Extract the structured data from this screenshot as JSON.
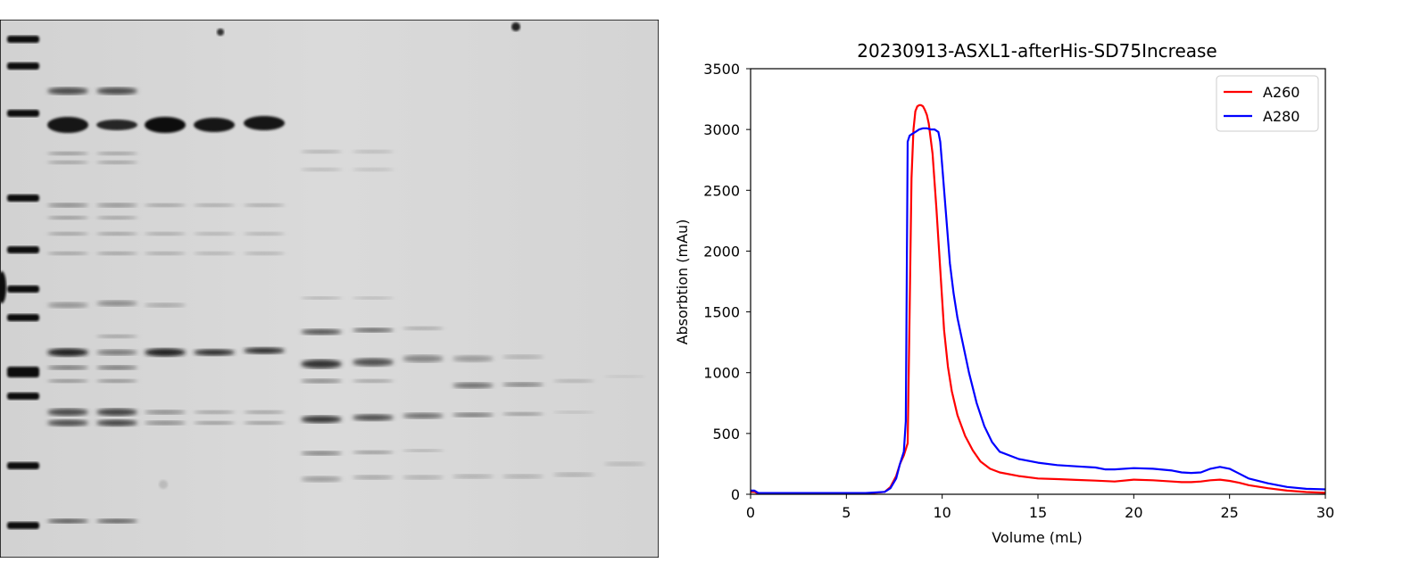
{
  "gel_image": {
    "description_name": "sds-page-gel"
  },
  "chart_data": {
    "type": "line",
    "title": "20230913-ASXL1-afterHis-SD75Increase",
    "xlabel": "Volume (mL)",
    "ylabel": "Absorbtion (mAu)",
    "xlim": [
      0,
      30
    ],
    "ylim": [
      0,
      3500
    ],
    "xticks": [
      "0",
      "5",
      "10",
      "15",
      "20",
      "25",
      "30"
    ],
    "yticks": [
      "0",
      "500",
      "1000",
      "1500",
      "2000",
      "2500",
      "3000",
      "3500"
    ],
    "grid": false,
    "legend_position": "top-right",
    "series": [
      {
        "name": "A260",
        "color": "#ff0000",
        "x": [
          0,
          0.2,
          0.4,
          1,
          3,
          5,
          6,
          7,
          7.3,
          7.6,
          7.8,
          8.0,
          8.2,
          8.3,
          8.4,
          8.5,
          8.6,
          8.7,
          8.8,
          8.9,
          9.0,
          9.1,
          9.2,
          9.3,
          9.5,
          9.7,
          9.9,
          10.1,
          10.3,
          10.5,
          10.8,
          11.2,
          11.6,
          12.0,
          12.5,
          13.0,
          14.0,
          15.0,
          16.0,
          17.0,
          18.0,
          19.0,
          20.0,
          21.0,
          22.0,
          22.5,
          23.0,
          23.5,
          24.0,
          24.5,
          25.0,
          25.5,
          26.0,
          27.0,
          28.0,
          29.0,
          30.0
        ],
        "y": [
          20,
          20,
          5,
          5,
          5,
          5,
          5,
          20,
          60,
          150,
          250,
          320,
          420,
          1500,
          2600,
          3000,
          3150,
          3190,
          3200,
          3200,
          3190,
          3160,
          3120,
          3050,
          2800,
          2350,
          1850,
          1350,
          1050,
          850,
          650,
          480,
          360,
          270,
          210,
          180,
          150,
          130,
          125,
          118,
          112,
          105,
          120,
          115,
          105,
          100,
          100,
          105,
          115,
          120,
          110,
          95,
          75,
          50,
          30,
          18,
          12
        ]
      },
      {
        "name": "A280",
        "color": "#0000ff",
        "x": [
          0,
          0.2,
          0.4,
          1,
          3,
          5,
          6,
          7,
          7.3,
          7.6,
          7.8,
          8.0,
          8.1,
          8.2,
          8.3,
          8.4,
          8.6,
          8.8,
          9.0,
          9.2,
          9.4,
          9.6,
          9.8,
          9.9,
          10.0,
          10.2,
          10.4,
          10.6,
          10.8,
          11.0,
          11.4,
          11.8,
          12.2,
          12.6,
          13.0,
          14.0,
          15.0,
          16.0,
          17.0,
          18.0,
          18.5,
          19.0,
          20.0,
          21.0,
          22.0,
          22.5,
          23.0,
          23.5,
          24.0,
          24.5,
          25.0,
          25.5,
          26.0,
          27.0,
          28.0,
          29.0,
          30.0
        ],
        "y": [
          30,
          30,
          10,
          10,
          10,
          10,
          10,
          20,
          50,
          130,
          250,
          350,
          600,
          2900,
          2950,
          2960,
          2980,
          3000,
          3010,
          3010,
          3000,
          3000,
          2980,
          2900,
          2700,
          2300,
          1900,
          1650,
          1450,
          1300,
          1000,
          750,
          560,
          430,
          350,
          290,
          260,
          240,
          230,
          220,
          205,
          205,
          215,
          210,
          195,
          180,
          175,
          180,
          210,
          225,
          210,
          170,
          130,
          90,
          60,
          45,
          40
        ]
      }
    ]
  }
}
